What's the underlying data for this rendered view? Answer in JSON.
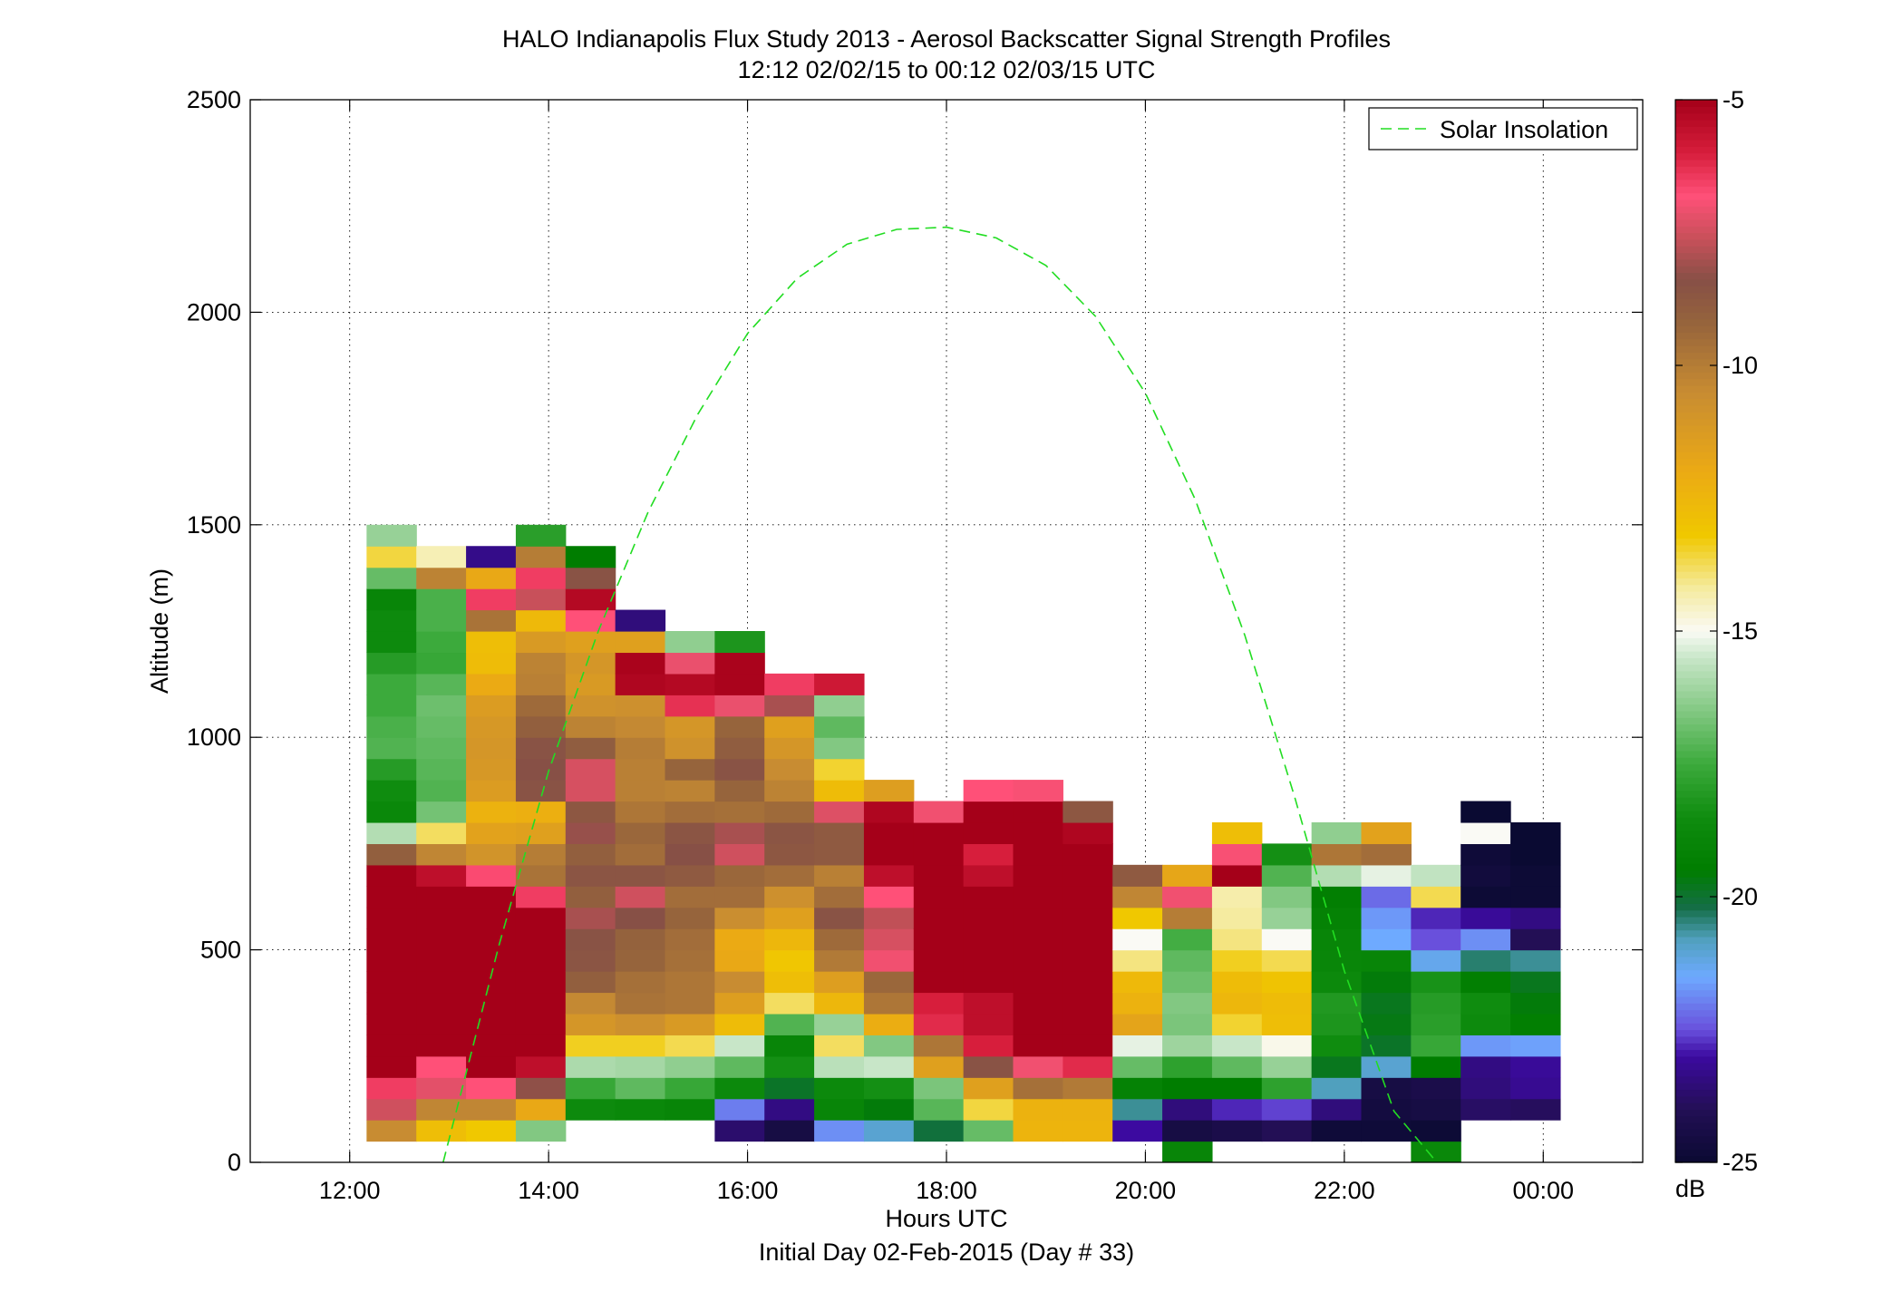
{
  "chart_data": {
    "type": "heatmap",
    "title": "HALO Indianapolis Flux Study 2013 - Aerosol Backscatter Signal Strength Profiles",
    "subtitle": "12:12 02/02/15 to 00:12 02/03/15  UTC",
    "xlabel": "Hours UTC",
    "xlabel2": "Initial Day 02-Feb-2015 (Day # 33)",
    "ylabel": "Altitude (m)",
    "xlim": [
      11.0,
      25.0
    ],
    "ylim": [
      0,
      2500
    ],
    "x_ticks": [
      12,
      14,
      16,
      18,
      20,
      22,
      24
    ],
    "x_tick_labels": [
      "12:00",
      "14:00",
      "16:00",
      "18:00",
      "20:00",
      "22:00",
      "00:00"
    ],
    "y_ticks": [
      0,
      500,
      1000,
      1500,
      2000,
      2500
    ],
    "y_tick_labels": [
      "0",
      "500",
      "1000",
      "1500",
      "2000",
      "2500"
    ],
    "grid": true,
    "legend": {
      "position": "top-right",
      "entries": [
        {
          "label": "Solar Insolation",
          "color": "#22dd22",
          "style": "dashed"
        }
      ]
    },
    "colorbar": {
      "label": "dB",
      "range": [
        -25,
        -5
      ],
      "ticks": [
        -25,
        -20,
        -15,
        -10,
        -5
      ],
      "tick_labels": [
        "-25",
        "-20",
        "-15",
        "-10",
        "-5"
      ]
    },
    "solar_insolation": {
      "x": [
        12.94,
        13.5,
        14.0,
        14.5,
        15.0,
        15.5,
        16.0,
        16.5,
        17.0,
        17.5,
        18.0,
        18.5,
        19.0,
        19.5,
        20.0,
        20.5,
        21.0,
        21.5,
        22.0,
        22.5,
        22.93
      ],
      "y": [
        0,
        510,
        920,
        1250,
        1530,
        1760,
        1950,
        2080,
        2160,
        2195,
        2200,
        2175,
        2110,
        1990,
        1810,
        1560,
        1240,
        860,
        450,
        120,
        0
      ]
    },
    "bin_hours": 0.5,
    "bin_height_m": 50,
    "profiles": [
      {
        "time": 12.42,
        "base": 50,
        "values": [
          -10.5,
          -7.5,
          -6.5,
          -5,
          -5,
          -5,
          -5,
          -5,
          -5,
          -5,
          -5,
          -5,
          -5,
          -9,
          -15.8,
          -18.8,
          -18.5,
          -18.0,
          -17.2,
          -17.3,
          -17.5,
          -17.5,
          -18.0,
          -18.6,
          -18.6,
          -19.0,
          -16.9,
          -13.6,
          -16.2
        ]
      },
      {
        "time": 12.92,
        "base": 50,
        "values": [
          -12.8,
          -10.3,
          -7.2,
          -6.8,
          -5,
          -5,
          -5,
          -5,
          -5,
          -5,
          -5,
          -5,
          -5.5,
          -10.3,
          -13.8,
          -16.7,
          -17.2,
          -17.1,
          -17.0,
          -16.9,
          -16.8,
          -17.1,
          -17.6,
          -17.5,
          -17.3,
          -17.3,
          -10.2,
          -14.4
        ]
      },
      {
        "time": 13.42,
        "base": 50,
        "values": [
          -13.2,
          -10.3,
          -6.8,
          -5,
          -5,
          -5,
          -5,
          -5,
          -5,
          -5,
          -5,
          -5,
          -6.7,
          -10.9,
          -11.6,
          -12.3,
          -11.3,
          -11.1,
          -11.0,
          -11.1,
          -11.3,
          -12.0,
          -12.7,
          -12.8,
          -9.7,
          -6.5,
          -11.9,
          -23.3
        ]
      },
      {
        "time": 13.92,
        "base": 50,
        "values": [
          -16.5,
          -11.9,
          -8.3,
          -5.5,
          -5,
          -5,
          -5,
          -5,
          -5,
          -5,
          -5,
          -6.5,
          -9.7,
          -10.0,
          -11.5,
          -12.2,
          -8.5,
          -8.4,
          -8.5,
          -9.0,
          -9.4,
          -10.1,
          -10.2,
          -11.2,
          -12.6,
          -7.6,
          -6.5,
          -10.0,
          -17.9
        ]
      },
      {
        "time": 14.42,
        "base": 100,
        "values": [
          -18.6,
          -17.6,
          -15.9,
          -13.4,
          -11.0,
          -10.4,
          -9.0,
          -8.6,
          -8.5,
          -8.0,
          -9.0,
          -8.6,
          -9.0,
          -8.2,
          -8.7,
          -7.4,
          -7.4,
          -8.9,
          -10.2,
          -10.8,
          -11.2,
          -11.0,
          -11.5,
          -6.8,
          -5.3,
          -8.5,
          -19.5
        ]
      },
      {
        "time": 14.92,
        "base": 100,
        "values": [
          -18.8,
          -17.0,
          -16.0,
          -13.4,
          -10.7,
          -9.7,
          -9.6,
          -9.2,
          -9.1,
          -8.4,
          -7.5,
          -8.6,
          -9.5,
          -9.3,
          -9.8,
          -10.1,
          -10.1,
          -10.0,
          -10.4,
          -10.7,
          -5.2,
          -5.1,
          -11.5,
          -23.5
        ]
      },
      {
        "time": 15.42,
        "base": 100,
        "values": [
          -19.0,
          -17.6,
          -16.3,
          -13.7,
          -11.2,
          -9.8,
          -9.8,
          -9.6,
          -9.5,
          -9.2,
          -9.5,
          -8.8,
          -8.4,
          -8.6,
          -9.5,
          -10.2,
          -9.2,
          -10.8,
          -11.0,
          -6.3,
          -5.3,
          -7.1,
          -16.3
        ]
      },
      {
        "time": 15.92,
        "base": 50,
        "values": [
          -23.7,
          -22.0,
          -18.7,
          -17.0,
          -15.5,
          -12.7,
          -11.4,
          -10.5,
          -11.9,
          -12.0,
          -10.6,
          -9.5,
          -9.3,
          -7.5,
          -8.0,
          -9.6,
          -9.2,
          -8.5,
          -8.9,
          -9.2,
          -7.1,
          -5.1,
          -5.1,
          -18.2
        ]
      },
      {
        "time": 16.42,
        "base": 50,
        "values": [
          -24.5,
          -23.4,
          -19.9,
          -18.4,
          -19.0,
          -17.2,
          -13.8,
          -12.8,
          -13.1,
          -12.5,
          -11.5,
          -10.7,
          -9.5,
          -8.7,
          -8.6,
          -9.4,
          -10.2,
          -10.5,
          -11.0,
          -11.5,
          -8.0,
          -6.5
        ]
      },
      {
        "time": 16.92,
        "base": 50,
        "values": [
          -21.8,
          -19.0,
          -18.7,
          -15.7,
          -13.8,
          -16.2,
          -12.5,
          -11.4,
          -9.9,
          -9.4,
          -8.5,
          -9.5,
          -10.1,
          -8.8,
          -8.8,
          -7.3,
          -12.7,
          -13.5,
          -16.5,
          -17.0,
          -16.3,
          -5.8
        ]
      },
      {
        "time": 17.42,
        "base": 50,
        "values": [
          -21.0,
          -19.6,
          -18.4,
          -15.5,
          -16.5,
          -12.1,
          -9.8,
          -9.3,
          -7.0,
          -7.4,
          -7.7,
          -6.8,
          -5.5,
          -5.0,
          -5.0,
          -5.2,
          -11.4
        ]
      },
      {
        "time": 17.92,
        "base": 50,
        "values": [
          -20.1,
          -17.1,
          -16.6,
          -11.5,
          -9.8,
          -6.2,
          -6.0,
          -5.0,
          -5.0,
          -5.0,
          -5.0,
          -5.0,
          -5.0,
          -5.0,
          -5.0,
          -7.0
        ]
      },
      {
        "time": 18.42,
        "base": 50,
        "values": [
          -16.9,
          -13.6,
          -11.5,
          -8.5,
          -6.0,
          -5.5,
          -5.5,
          -5.0,
          -5.0,
          -5.0,
          -5.0,
          -5.0,
          -5.5,
          -6.0,
          -5.0,
          -5.0,
          -6.8
        ]
      },
      {
        "time": 18.92,
        "base": 50,
        "values": [
          -12.4,
          -12.3,
          -9.6,
          -7.0,
          -5.0,
          -5.0,
          -5.0,
          -5.0,
          -5.0,
          -5.0,
          -5.0,
          -5.0,
          -5.0,
          -5.0,
          -5.0,
          -5.0,
          -6.9
        ]
      },
      {
        "time": 19.42,
        "base": 50,
        "values": [
          -12.4,
          -12.3,
          -9.9,
          -6.2,
          -5.0,
          -5.0,
          -5.0,
          -5.0,
          -5.0,
          -5.0,
          -5.0,
          -5.0,
          -5.0,
          -5.0,
          -5.2,
          -8.7
        ]
      },
      {
        "time": 19.92,
        "base": 50,
        "values": [
          -23.0,
          -20.6,
          -19.2,
          -16.9,
          -15.2,
          -11.7,
          -12.3,
          -12.6,
          -14.0,
          -15.0,
          -13.2,
          -10.3,
          -8.8
        ]
      },
      {
        "time": 20.42,
        "base": 0,
        "values": [
          -19.0,
          -24.5,
          -23.5,
          -19.5,
          -17.8,
          -16.1,
          -16.6,
          -16.5,
          -16.8,
          -17.0,
          -17.4,
          -10.0,
          -7.0,
          -11.8
        ]
      },
      {
        "time": 20.92,
        "base": 50,
        "values": [
          -24.3,
          -22.8,
          -19.5,
          -17.0,
          -15.5,
          -13.5,
          -12.5,
          -12.7,
          -13.4,
          -14.0,
          -14.2,
          -14.3,
          -5.0,
          -6.9,
          -12.8
        ]
      },
      {
        "time": 21.42,
        "base": 50,
        "values": [
          -24.0,
          -22.6,
          -17.8,
          -16.2,
          -14.9,
          -12.8,
          -12.7,
          -13.0,
          -13.7,
          -15.0,
          -16.2,
          -16.5,
          -17.2,
          -18.4
        ]
      },
      {
        "time": 21.92,
        "base": 50,
        "values": [
          -24.8,
          -23.5,
          -20.8,
          -19.8,
          -18.5,
          -18.2,
          -18.1,
          -18.7,
          -18.9,
          -19.0,
          -19.2,
          -19.4,
          -15.8,
          -9.8,
          -16.3
        ]
      },
      {
        "time": 22.42,
        "base": 50,
        "values": [
          -24.8,
          -24.6,
          -24.5,
          -21.0,
          -19.9,
          -19.7,
          -19.8,
          -19.6,
          -19.0,
          -21.5,
          -21.7,
          -22.2,
          -15.2,
          -9.5,
          -11.6
        ]
      },
      {
        "time": 22.92,
        "base": 0,
        "values": [
          -18.8,
          -24.9,
          -24.5,
          -24.3,
          -19.5,
          -17.6,
          -17.9,
          -18.0,
          -18.3,
          -21.3,
          -22.5,
          -22.8,
          -13.7,
          -15.6
        ]
      },
      {
        "time": 23.42,
        "base": 100,
        "values": [
          -23.8,
          -23.5,
          -23.4,
          -21.7,
          -18.6,
          -18.5,
          -19.4,
          -20.4,
          -21.8,
          -23.1,
          -24.9,
          -24.7,
          -24.8,
          -15.0,
          -25.0
        ]
      },
      {
        "time": 23.92,
        "base": 100,
        "values": [
          -23.9,
          -23.2,
          -23.1,
          -21.6,
          -19.4,
          -19.6,
          -19.8,
          -20.6,
          -24.0,
          -23.4,
          -24.9,
          -24.9,
          -25.0,
          -25.0
        ]
      }
    ]
  }
}
